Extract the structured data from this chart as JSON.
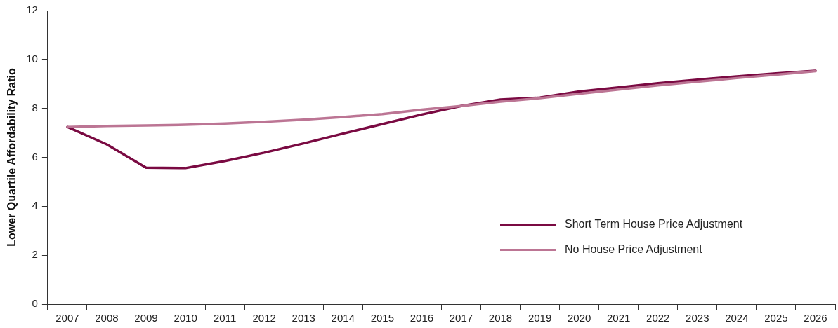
{
  "chart_data": {
    "type": "line",
    "ylabel": "Lower Quartile Affordability Ratio",
    "categories": [
      "2007",
      "2008",
      "2009",
      "2010",
      "2011",
      "2012",
      "2013",
      "2014",
      "2015",
      "2016",
      "2017",
      "2018",
      "2019",
      "2020",
      "2021",
      "2022",
      "2023",
      "2024",
      "2025",
      "2026"
    ],
    "series": [
      {
        "name": "Short Term House Price Adjustment",
        "color": "#7a0a42",
        "values": [
          7.24,
          6.53,
          5.58,
          5.56,
          5.85,
          6.19,
          6.57,
          6.97,
          7.36,
          7.75,
          8.1,
          8.36,
          8.44,
          8.69,
          8.86,
          9.03,
          9.17,
          9.31,
          9.43,
          9.54
        ]
      },
      {
        "name": "No House Price Adjustment",
        "color": "#bc7594",
        "values": [
          7.24,
          7.28,
          7.3,
          7.33,
          7.38,
          7.45,
          7.54,
          7.65,
          7.77,
          7.95,
          8.1,
          8.28,
          8.42,
          8.6,
          8.77,
          8.94,
          9.09,
          9.24,
          9.38,
          9.52
        ]
      }
    ],
    "ylim": [
      0,
      12
    ],
    "yticks": [
      0,
      2,
      4,
      6,
      8,
      10,
      12
    ],
    "grid": false,
    "legend": "bottom right",
    "marker": "none",
    "line_style": "solid"
  }
}
